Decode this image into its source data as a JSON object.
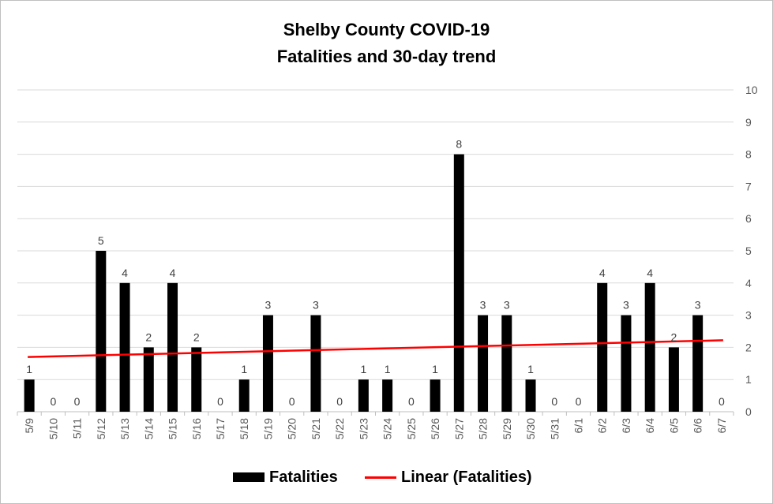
{
  "chart_data": {
    "type": "bar",
    "title_line1": "Shelby County COVID-19",
    "title_line2": "Fatalities and 30-day trend",
    "categories": [
      "5/9",
      "5/10",
      "5/11",
      "5/12",
      "5/13",
      "5/14",
      "5/15",
      "5/16",
      "5/17",
      "5/18",
      "5/19",
      "5/20",
      "5/21",
      "5/22",
      "5/23",
      "5/24",
      "5/25",
      "5/26",
      "5/27",
      "5/28",
      "5/29",
      "5/30",
      "5/31",
      "6/1",
      "6/2",
      "6/3",
      "6/4",
      "6/5",
      "6/6",
      "6/7"
    ],
    "series": [
      {
        "name": "Fatalities",
        "color": "#000000",
        "values": [
          1,
          0,
          0,
          5,
          4,
          2,
          4,
          2,
          0,
          1,
          3,
          0,
          3,
          0,
          1,
          1,
          0,
          1,
          8,
          3,
          3,
          1,
          0,
          0,
          4,
          3,
          4,
          2,
          3,
          0
        ]
      }
    ],
    "trendline": {
      "name": "Linear (Fatalities)",
      "color": "#ff0000",
      "start_value": 1.7,
      "end_value": 2.22
    },
    "ylim": [
      0,
      10
    ],
    "yticks": [
      0,
      1,
      2,
      3,
      4,
      5,
      6,
      7,
      8,
      9,
      10
    ],
    "y_axis_side": "right",
    "grid": true,
    "legend_position": "bottom"
  }
}
